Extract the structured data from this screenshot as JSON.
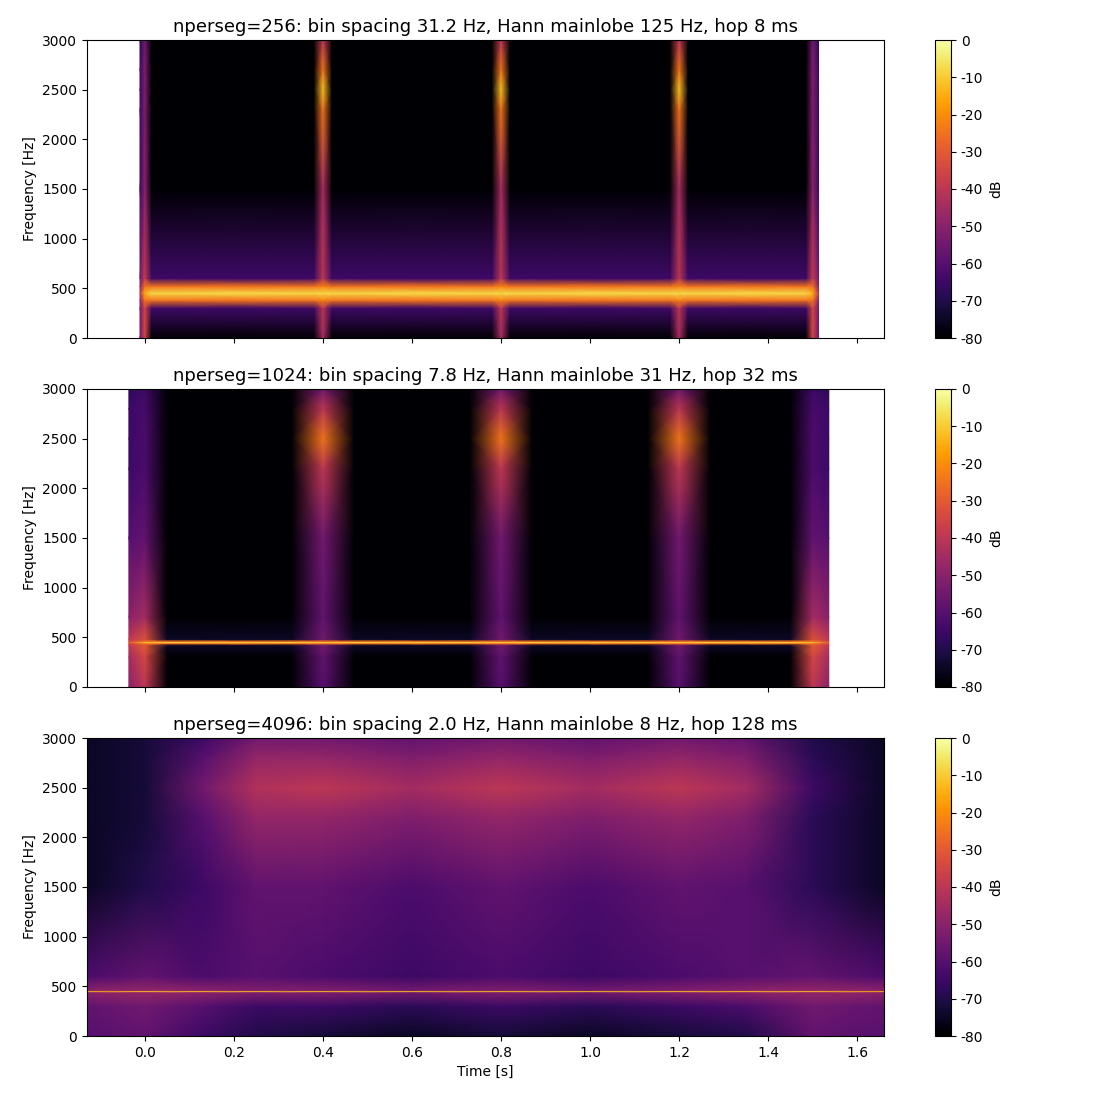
{
  "chart_data": [
    {
      "type": "heatmap",
      "title": "nperseg=256: bin spacing 31.2 Hz, Hann mainlobe 125 Hz, hop 8 ms",
      "ylabel": "Frequency [Hz]",
      "tick_labels": "y",
      "xlim": [
        -0.13,
        1.66
      ],
      "ylim": [
        0,
        3000
      ],
      "xticks": [
        0.0,
        0.2,
        0.4,
        0.6,
        0.8,
        1.0,
        1.2,
        1.4,
        1.6
      ],
      "yticks": [
        0,
        500,
        1000,
        1500,
        2000,
        2500,
        3000
      ],
      "x": [
        -0.011,
        0.0,
        0.015,
        0.38,
        0.4,
        0.42,
        0.78,
        0.8,
        0.82,
        1.18,
        1.2,
        1.22,
        1.485,
        1.5,
        1.513
      ],
      "y": [
        0,
        300,
        380,
        450,
        520,
        600,
        1500,
        2300,
        2500,
        2700,
        3000
      ],
      "z": [
        [
          -55,
          -35,
          -80,
          -80,
          -45,
          -80,
          -80,
          -45,
          -80,
          -80,
          -45,
          -80,
          -80,
          -35,
          -55
        ],
        [
          -55,
          -35,
          -65,
          -65,
          -40,
          -65,
          -65,
          -40,
          -65,
          -65,
          -40,
          -65,
          -65,
          -35,
          -55
        ],
        [
          -50,
          -25,
          -25,
          -25,
          -22,
          -25,
          -25,
          -22,
          -25,
          -25,
          -22,
          -25,
          -25,
          -25,
          -50
        ],
        [
          -40,
          -15,
          -8,
          -8,
          -8,
          -8,
          -8,
          -8,
          -8,
          -8,
          -8,
          -8,
          -8,
          -15,
          -40
        ],
        [
          -50,
          -25,
          -25,
          -25,
          -22,
          -25,
          -25,
          -22,
          -25,
          -25,
          -22,
          -25,
          -25,
          -25,
          -50
        ],
        [
          -55,
          -38,
          -65,
          -65,
          -40,
          -65,
          -65,
          -40,
          -65,
          -65,
          -40,
          -65,
          -65,
          -38,
          -55
        ],
        [
          -65,
          -50,
          -80,
          -80,
          -45,
          -80,
          -80,
          -45,
          -80,
          -80,
          -45,
          -80,
          -80,
          -50,
          -65
        ],
        [
          -65,
          -52,
          -80,
          -80,
          -25,
          -80,
          -80,
          -25,
          -80,
          -80,
          -25,
          -80,
          -80,
          -52,
          -65
        ],
        [
          -65,
          -52,
          -80,
          -80,
          -12,
          -80,
          -80,
          -12,
          -80,
          -80,
          -12,
          -80,
          -80,
          -52,
          -65
        ],
        [
          -65,
          -52,
          -80,
          -80,
          -25,
          -80,
          -80,
          -25,
          -80,
          -80,
          -25,
          -80,
          -80,
          -52,
          -65
        ],
        [
          -68,
          -55,
          -80,
          -80,
          -40,
          -80,
          -80,
          -40,
          -80,
          -80,
          -40,
          -80,
          -80,
          -55,
          -68
        ]
      ],
      "colorbar": {
        "label": "dB",
        "range": [
          -80,
          0
        ],
        "ticks": [
          0,
          -10,
          -20,
          -30,
          -40,
          -50,
          -60,
          -70,
          -80
        ]
      }
    },
    {
      "type": "heatmap",
      "title": "nperseg=1024: bin spacing 7.8 Hz, Hann mainlobe 31 Hz, hop 32 ms",
      "ylabel": "Frequency [Hz]",
      "tick_labels": "y",
      "xlim": [
        -0.13,
        1.66
      ],
      "ylim": [
        0,
        3000
      ],
      "xticks": [
        0.0,
        0.2,
        0.4,
        0.6,
        0.8,
        1.0,
        1.2,
        1.4,
        1.6
      ],
      "yticks": [
        0,
        500,
        1000,
        1500,
        2000,
        2500,
        3000
      ],
      "x": [
        -0.036,
        0.0,
        0.05,
        0.33,
        0.4,
        0.47,
        0.73,
        0.8,
        0.87,
        1.13,
        1.2,
        1.27,
        1.45,
        1.5,
        1.536
      ],
      "y": [
        0,
        300,
        420,
        440,
        450,
        460,
        480,
        700,
        1500,
        2200,
        2500,
        2800,
        3000
      ],
      "z": [
        [
          -50,
          -40,
          -80,
          -80,
          -60,
          -80,
          -80,
          -60,
          -80,
          -80,
          -60,
          -80,
          -80,
          -40,
          -50
        ],
        [
          -45,
          -35,
          -80,
          -80,
          -58,
          -80,
          -80,
          -58,
          -80,
          -80,
          -58,
          -80,
          -80,
          -35,
          -45
        ],
        [
          -40,
          -30,
          -75,
          -75,
          -55,
          -75,
          -75,
          -55,
          -75,
          -75,
          -55,
          -75,
          -75,
          -30,
          -40
        ],
        [
          -35,
          -25,
          -25,
          -25,
          -25,
          -25,
          -25,
          -25,
          -25,
          -25,
          -25,
          -25,
          -25,
          -25,
          -35
        ],
        [
          -30,
          -10,
          -8,
          -8,
          -8,
          -8,
          -8,
          -8,
          -8,
          -8,
          -8,
          -8,
          -8,
          -10,
          -30
        ],
        [
          -35,
          -25,
          -25,
          -25,
          -25,
          -25,
          -25,
          -25,
          -25,
          -25,
          -25,
          -25,
          -25,
          -25,
          -35
        ],
        [
          -40,
          -32,
          -75,
          -75,
          -55,
          -75,
          -75,
          -55,
          -75,
          -75,
          -55,
          -75,
          -75,
          -32,
          -40
        ],
        [
          -50,
          -45,
          -80,
          -80,
          -58,
          -80,
          -80,
          -58,
          -80,
          -80,
          -58,
          -80,
          -80,
          -45,
          -50
        ],
        [
          -60,
          -58,
          -80,
          -80,
          -55,
          -80,
          -80,
          -55,
          -80,
          -80,
          -55,
          -80,
          -80,
          -58,
          -60
        ],
        [
          -65,
          -62,
          -80,
          -80,
          -40,
          -80,
          -80,
          -40,
          -80,
          -80,
          -40,
          -80,
          -80,
          -62,
          -65
        ],
        [
          -65,
          -62,
          -80,
          -80,
          -25,
          -80,
          -80,
          -25,
          -80,
          -80,
          -25,
          -80,
          -80,
          -62,
          -65
        ],
        [
          -65,
          -63,
          -80,
          -80,
          -40,
          -80,
          -80,
          -40,
          -80,
          -80,
          -40,
          -80,
          -80,
          -63,
          -65
        ],
        [
          -68,
          -65,
          -80,
          -80,
          -55,
          -80,
          -80,
          -55,
          -80,
          -80,
          -55,
          -80,
          -80,
          -65,
          -68
        ]
      ],
      "colorbar": {
        "label": "dB",
        "range": [
          -80,
          0
        ],
        "ticks": [
          0,
          -10,
          -20,
          -30,
          -40,
          -50,
          -60,
          -70,
          -80
        ]
      }
    },
    {
      "type": "heatmap",
      "title": "nperseg=4096: bin spacing 2.0 Hz, Hann mainlobe 8 Hz, hop 128 ms",
      "xlabel": "Time [s]",
      "ylabel": "Frequency [Hz]",
      "xlim": [
        -0.13,
        1.66
      ],
      "ylim": [
        0,
        3000
      ],
      "xticks": [
        0.0,
        0.2,
        0.4,
        0.6,
        0.8,
        1.0,
        1.2,
        1.4,
        1.6
      ],
      "yticks": [
        0,
        500,
        1000,
        1500,
        2000,
        2500,
        3000
      ],
      "x": [
        -0.13,
        0.0,
        0.13,
        0.25,
        0.4,
        0.6,
        0.8,
        1.0,
        1.2,
        1.35,
        1.5,
        1.66
      ],
      "y": [
        0,
        300,
        440,
        450,
        460,
        600,
        1500,
        2200,
        2500,
        2800,
        3000
      ],
      "z": [
        [
          -60,
          -58,
          -65,
          -70,
          -72,
          -75,
          -72,
          -75,
          -72,
          -70,
          -58,
          -60
        ],
        [
          -58,
          -55,
          -60,
          -65,
          -65,
          -68,
          -65,
          -68,
          -65,
          -62,
          -55,
          -58
        ],
        [
          -50,
          -48,
          -50,
          -52,
          -52,
          -55,
          -52,
          -55,
          -52,
          -50,
          -48,
          -50
        ],
        [
          -15,
          -12,
          -12,
          -12,
          -12,
          -12,
          -12,
          -12,
          -12,
          -12,
          -12,
          -15
        ],
        [
          -50,
          -48,
          -50,
          -52,
          -52,
          -55,
          -52,
          -55,
          -52,
          -50,
          -48,
          -50
        ],
        [
          -62,
          -58,
          -62,
          -60,
          -62,
          -65,
          -62,
          -65,
          -62,
          -60,
          -58,
          -62
        ],
        [
          -75,
          -70,
          -65,
          -58,
          -58,
          -62,
          -58,
          -62,
          -58,
          -60,
          -68,
          -75
        ],
        [
          -75,
          -72,
          -60,
          -48,
          -48,
          -52,
          -48,
          -52,
          -48,
          -52,
          -68,
          -75
        ],
        [
          -75,
          -72,
          -55,
          -42,
          -40,
          -45,
          -40,
          -45,
          -40,
          -45,
          -65,
          -75
        ],
        [
          -75,
          -72,
          -60,
          -48,
          -48,
          -52,
          -48,
          -52,
          -48,
          -52,
          -68,
          -75
        ],
        [
          -75,
          -72,
          -65,
          -55,
          -55,
          -58,
          -55,
          -58,
          -55,
          -58,
          -70,
          -75
        ]
      ],
      "colorbar": {
        "label": "dB",
        "range": [
          -80,
          0
        ],
        "ticks": [
          0,
          -10,
          -20,
          -30,
          -40,
          -50,
          -60,
          -70,
          -80
        ]
      }
    }
  ]
}
